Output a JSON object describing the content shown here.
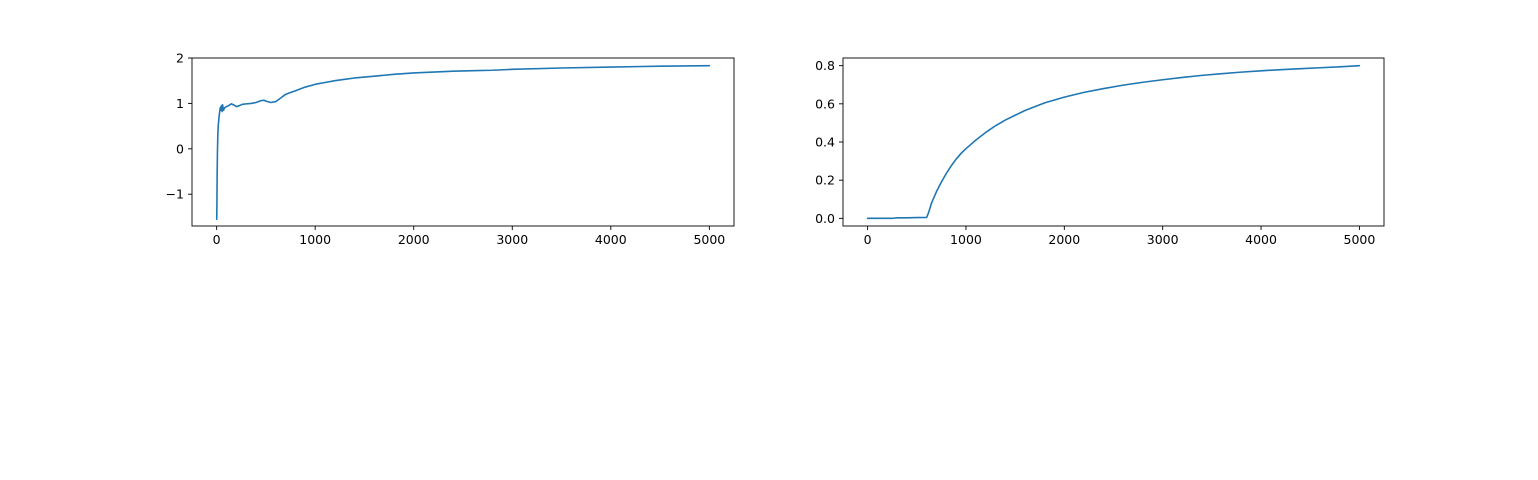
{
  "chart_data": [
    {
      "type": "line",
      "title": "",
      "xlabel": "",
      "ylabel": "",
      "xlim": [
        -250,
        5250
      ],
      "ylim": [
        -1.7,
        2.0
      ],
      "xticks": [
        0,
        1000,
        2000,
        3000,
        4000,
        5000
      ],
      "yticks": [
        -1,
        0,
        1,
        2
      ],
      "grid": false,
      "color": "#1f77b4",
      "series": [
        {
          "x": [
            1,
            3,
            5,
            8,
            12,
            16,
            20,
            25,
            30,
            35,
            40,
            45,
            50,
            55,
            60,
            70,
            80,
            100,
            120,
            150,
            180,
            200,
            230,
            260,
            300,
            350,
            400,
            450,
            480,
            500,
            550,
            600,
            650,
            700,
            750,
            800,
            900,
            1000,
            1100,
            1200,
            1300,
            1400,
            1500,
            1600,
            1700,
            1800,
            2000,
            2200,
            2400,
            2600,
            2800,
            3000,
            3500,
            4000,
            4500,
            5000
          ],
          "y": [
            -1.55,
            -1.2,
            -0.6,
            -0.1,
            0.3,
            0.5,
            0.6,
            0.72,
            0.8,
            0.88,
            0.92,
            0.85,
            0.95,
            0.82,
            0.97,
            0.85,
            0.9,
            0.93,
            0.95,
            0.99,
            0.96,
            0.93,
            0.95,
            0.98,
            0.99,
            1.0,
            1.02,
            1.06,
            1.07,
            1.05,
            1.02,
            1.04,
            1.12,
            1.2,
            1.24,
            1.28,
            1.36,
            1.42,
            1.46,
            1.5,
            1.53,
            1.56,
            1.58,
            1.6,
            1.62,
            1.64,
            1.67,
            1.69,
            1.71,
            1.72,
            1.73,
            1.75,
            1.78,
            1.8,
            1.82,
            1.83
          ]
        }
      ]
    },
    {
      "type": "line",
      "title": "",
      "xlabel": "",
      "ylabel": "",
      "xlim": [
        -250,
        5250
      ],
      "ylim": [
        -0.04,
        0.84
      ],
      "xticks": [
        0,
        1000,
        2000,
        3000,
        4000,
        5000
      ],
      "yticks": [
        0.0,
        0.2,
        0.4,
        0.6,
        0.8
      ],
      "ytick_labels": [
        "0.0",
        "0.2",
        "0.4",
        "0.6",
        "0.8"
      ],
      "grid": false,
      "color": "#1f77b4",
      "series": [
        {
          "x": [
            0,
            100,
            200,
            250,
            300,
            400,
            500,
            600,
            620,
            650,
            700,
            750,
            800,
            850,
            900,
            950,
            1000,
            1100,
            1200,
            1300,
            1400,
            1500,
            1600,
            1800,
            2000,
            2200,
            2400,
            2600,
            2800,
            3000,
            3200,
            3400,
            3600,
            3800,
            4000,
            4200,
            4400,
            4600,
            4800,
            5000
          ],
          "y": [
            0,
            0,
            0,
            0,
            0.003,
            0.003,
            0.004,
            0.005,
            0.03,
            0.08,
            0.14,
            0.19,
            0.235,
            0.275,
            0.31,
            0.34,
            0.365,
            0.41,
            0.45,
            0.485,
            0.515,
            0.54,
            0.565,
            0.605,
            0.635,
            0.66,
            0.68,
            0.698,
            0.713,
            0.726,
            0.738,
            0.749,
            0.758,
            0.766,
            0.773,
            0.779,
            0.784,
            0.789,
            0.794,
            0.8
          ]
        }
      ]
    }
  ]
}
